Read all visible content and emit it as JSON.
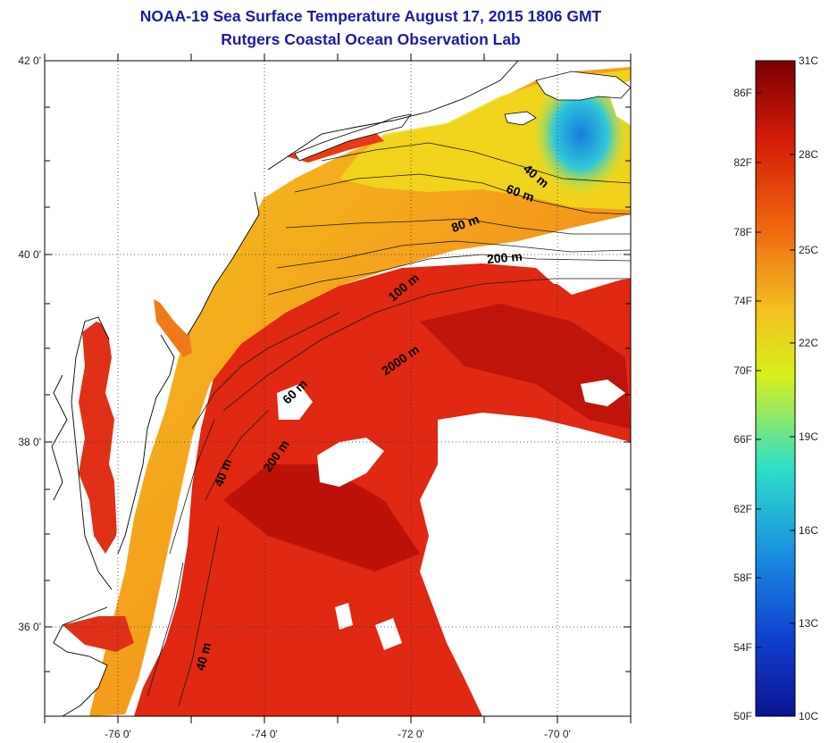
{
  "title": {
    "line1": "NOAA-19 Sea Surface Temperature August 17, 2015 1806 GMT",
    "line2": "Rutgers Coastal Ocean Observation Lab"
  },
  "map": {
    "lat_labels": [
      "42 0'",
      "40 0'",
      "38 0'",
      "36 0'"
    ],
    "lon_labels": [
      "-76 0'",
      "-74 0'",
      "-72 0'",
      "-70 0'"
    ],
    "contour_labels": [
      "40 m",
      "60 m",
      "80 m",
      "200 m",
      "100 m",
      "2000 m",
      "60 m",
      "200 m",
      "40 m",
      "40 m"
    ],
    "colors": {
      "land": "#ffffff",
      "cloud": "#ffffff",
      "coast": "#000000",
      "deep_red": "#b40f0a",
      "red": "#e02812",
      "orange": "#f07a1a",
      "yellow": "#f2d21a",
      "cyan": "#2ec8d8",
      "blue": "#1a7ae0"
    }
  },
  "colorbar": {
    "f_labels": [
      "86F",
      "82F",
      "78F",
      "74F",
      "70F",
      "66F",
      "62F",
      "58F",
      "54F",
      "50F"
    ],
    "c_labels": [
      "31C",
      "28C",
      "25C",
      "22C",
      "19C",
      "16C",
      "13C",
      "10C"
    ],
    "stops": [
      "#7a0000",
      "#d41a08",
      "#f06a10",
      "#f2c020",
      "#d8f01a",
      "#2ee0c8",
      "#1a90e0",
      "#1040d0",
      "#0a1490"
    ]
  }
}
